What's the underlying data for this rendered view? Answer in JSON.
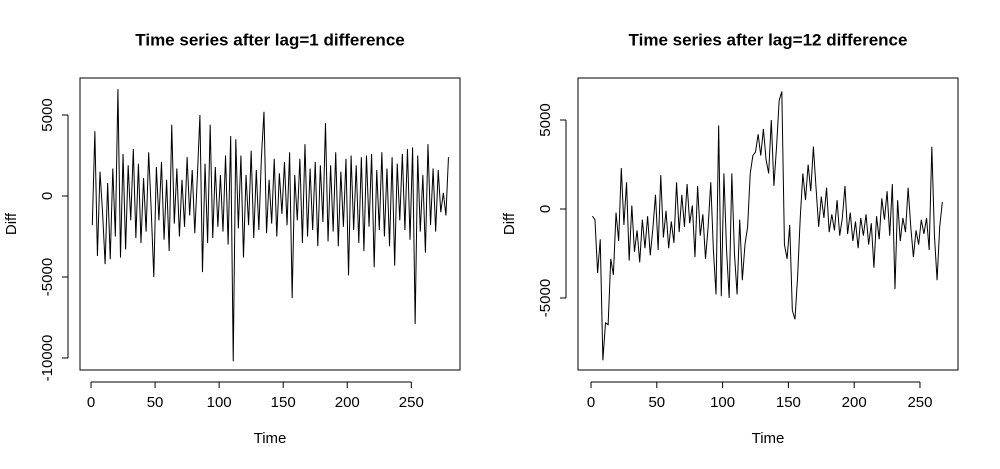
{
  "chart_data": [
    {
      "type": "line",
      "title": "Time series after lag=1 difference",
      "xlabel": "Time",
      "ylabel": "Diff",
      "color": "#000000",
      "xlim": [
        -8.6,
        288
      ],
      "xticks": [
        0,
        50,
        100,
        150,
        200,
        250
      ],
      "ylim": [
        -10740,
        7284
      ],
      "yticks": [
        -10000,
        -5000,
        0,
        5000
      ],
      "x": [
        1,
        3,
        5,
        7,
        9,
        11,
        13,
        15,
        17,
        19,
        21,
        23,
        25,
        27,
        29,
        31,
        33,
        35,
        37,
        39,
        41,
        43,
        45,
        47,
        49,
        51,
        53,
        55,
        57,
        59,
        61,
        63,
        65,
        67,
        69,
        71,
        73,
        75,
        77,
        79,
        81,
        83,
        85,
        87,
        89,
        91,
        93,
        95,
        97,
        99,
        101,
        103,
        105,
        107,
        109,
        111,
        113,
        115,
        117,
        119,
        121,
        123,
        125,
        127,
        129,
        131,
        133,
        135,
        137,
        139,
        141,
        143,
        145,
        147,
        149,
        151,
        153,
        155,
        157,
        159,
        161,
        163,
        165,
        167,
        169,
        171,
        173,
        175,
        177,
        179,
        181,
        183,
        185,
        187,
        189,
        191,
        193,
        195,
        197,
        199,
        201,
        203,
        205,
        207,
        209,
        211,
        213,
        215,
        217,
        219,
        221,
        223,
        225,
        227,
        229,
        231,
        233,
        235,
        237,
        239,
        241,
        243,
        245,
        247,
        249,
        251,
        253,
        255,
        257,
        259,
        261,
        263,
        265,
        267,
        269,
        271,
        273,
        275,
        277,
        279
      ],
      "values": [
        -1800,
        4000,
        -3700,
        1500,
        -1000,
        -4200,
        800,
        -3900,
        1700,
        -2500,
        6600,
        -3800,
        2600,
        -3300,
        1900,
        -1500,
        2900,
        -2600,
        2000,
        -2900,
        1100,
        -2200,
        2700,
        -900,
        -5000,
        1800,
        -1500,
        2100,
        -2700,
        1000,
        -3400,
        4400,
        -1700,
        1700,
        -2500,
        1000,
        -1900,
        2400,
        -1200,
        1600,
        -2300,
        1200,
        5000,
        -4700,
        2000,
        -2900,
        4400,
        -2600,
        1800,
        -1900,
        1300,
        -2200,
        2500,
        -3000,
        3700,
        -10200,
        3500,
        -2000,
        2500,
        -3800,
        1300,
        -1800,
        2800,
        -2600,
        1600,
        -2100,
        2400,
        5200,
        -2300,
        1000,
        -1700,
        2300,
        -2500,
        1400,
        -1100,
        2100,
        -1800,
        2700,
        -6300,
        1300,
        -1500,
        2300,
        -2900,
        3200,
        -2500,
        1700,
        -2100,
        2100,
        -3100,
        1900,
        -1600,
        4500,
        -2800,
        1900,
        -2200,
        2700,
        -3100,
        1500,
        -1900,
        2300,
        -4900,
        2500,
        -2100,
        1900,
        -2900,
        2400,
        -3400,
        2500,
        -1900,
        2600,
        -4400,
        1600,
        -2100,
        2700,
        -2500,
        1700,
        -3100,
        2400,
        -4300,
        2000,
        -1500,
        2600,
        -2100,
        2900,
        -2700,
        3000,
        -7900,
        2500,
        -2200,
        1300,
        -3500,
        3200,
        -1800,
        1700,
        -2200,
        1600,
        -1000,
        200,
        -1200,
        2400
      ]
    },
    {
      "type": "line",
      "title": "Time series after lag=12 difference",
      "xlabel": "Time",
      "ylabel": "Diff",
      "color": "#000000",
      "xlim": [
        -9.9,
        278.9
      ],
      "xticks": [
        0,
        50,
        100,
        150,
        200,
        250
      ],
      "ylim": [
        -9045,
        7360
      ],
      "yticks": [
        -5000,
        0,
        5000
      ],
      "x": [
        1,
        3,
        5,
        7,
        9,
        11,
        13,
        15,
        17,
        19,
        21,
        23,
        25,
        27,
        29,
        31,
        33,
        35,
        37,
        39,
        41,
        43,
        45,
        47,
        49,
        51,
        53,
        55,
        57,
        59,
        61,
        63,
        65,
        67,
        69,
        71,
        73,
        75,
        77,
        79,
        81,
        83,
        85,
        87,
        89,
        91,
        93,
        95,
        97,
        99,
        101,
        103,
        105,
        107,
        109,
        111,
        113,
        115,
        117,
        119,
        121,
        123,
        125,
        127,
        129,
        131,
        133,
        135,
        137,
        139,
        141,
        143,
        145,
        147,
        149,
        151,
        153,
        155,
        157,
        159,
        161,
        163,
        165,
        167,
        169,
        171,
        173,
        175,
        177,
        179,
        181,
        183,
        185,
        187,
        189,
        191,
        193,
        195,
        197,
        199,
        201,
        203,
        205,
        207,
        209,
        211,
        213,
        215,
        217,
        219,
        221,
        223,
        225,
        227,
        229,
        231,
        233,
        235,
        237,
        239,
        241,
        243,
        245,
        247,
        249,
        251,
        253,
        255,
        257,
        259,
        261,
        263,
        265,
        267
      ],
      "values": [
        -400,
        -600,
        -3600,
        -1700,
        -8500,
        -6400,
        -6500,
        -2800,
        -3700,
        -200,
        -1800,
        2300,
        -900,
        1500,
        -2900,
        200,
        -2400,
        -1200,
        -3000,
        -600,
        -2200,
        -400,
        -2600,
        -1100,
        800,
        -2300,
        1900,
        -1600,
        -100,
        -2200,
        -700,
        -1900,
        1500,
        -1300,
        800,
        -1000,
        1400,
        -800,
        200,
        -2700,
        1300,
        -1500,
        -300,
        -2800,
        -1000,
        1500,
        -2300,
        -4800,
        4700,
        -4900,
        2000,
        -2300,
        -5000,
        2000,
        -2500,
        -4800,
        -600,
        -4000,
        -2000,
        -1000,
        2000,
        3000,
        3200,
        4200,
        3000,
        4500,
        2800,
        2000,
        5000,
        1300,
        3500,
        6100,
        6600,
        -2000,
        -2800,
        -900,
        -5700,
        -6200,
        -3800,
        -500,
        2000,
        500,
        2500,
        1000,
        3500,
        1200,
        -1000,
        700,
        -500,
        1200,
        -1300,
        -300,
        -1200,
        500,
        -1500,
        -500,
        1300,
        -1400,
        -200,
        -1800,
        -700,
        -2200,
        -500,
        -1500,
        -300,
        -2000,
        -800,
        -3300,
        -400,
        -1700,
        600,
        -600,
        1000,
        -1500,
        1400,
        -4500,
        500,
        -1800,
        -500,
        -1300,
        1200,
        -1000,
        -2700,
        -1200,
        -2000,
        -600,
        -1400,
        -500,
        -2300,
        3500,
        -1500,
        -4000,
        -1000,
        400
      ]
    }
  ]
}
